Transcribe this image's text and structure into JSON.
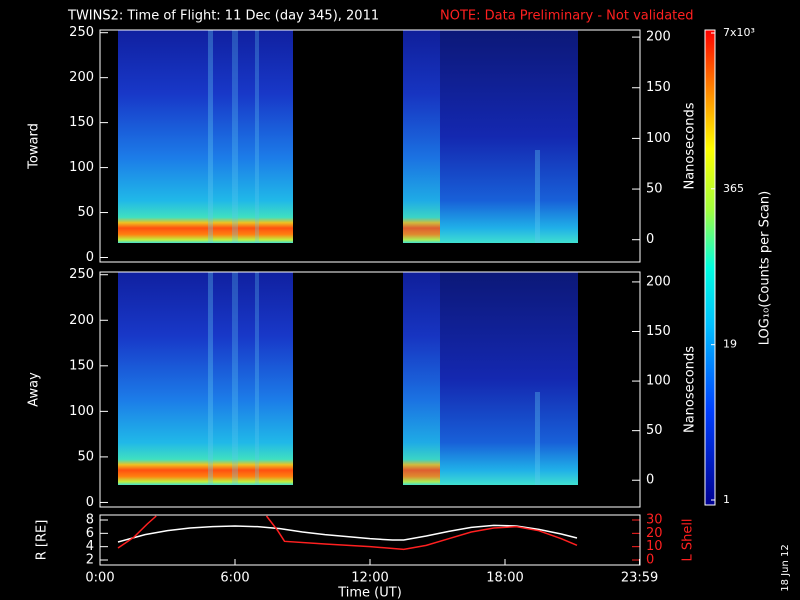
{
  "chart_data": [
    {
      "type": "heatmap",
      "title": "TWINS2: Time of Flight: 11 Dec (day 345), 2011",
      "annotation": "NOTE: Data Preliminary - Not validated",
      "ylabel": "Toward",
      "y2label": "Nanoseconds",
      "xlim": [
        0,
        24
      ],
      "ylim": [
        -5,
        253
      ],
      "yticks": [
        0,
        50,
        100,
        150,
        200,
        250
      ],
      "y2lim": [
        -22,
        207
      ],
      "y2ticks": [
        0,
        50,
        100,
        150,
        200
      ]
    },
    {
      "type": "heatmap",
      "ylabel": "Away",
      "y2label": "Nanoseconds",
      "xlim": [
        0,
        24
      ],
      "ylim": [
        -5,
        253
      ],
      "yticks": [
        0,
        50,
        100,
        150,
        200,
        250
      ],
      "y2lim": [
        -27,
        210
      ],
      "y2ticks": [
        0,
        50,
        100,
        150,
        200
      ]
    },
    {
      "type": "line",
      "xlabel": "Time (UT)",
      "ylabel": "R [RE]",
      "y2label": "L Shell",
      "xlim": [
        0,
        24
      ],
      "xticks": [
        {
          "value": 0,
          "label": "0:00"
        },
        {
          "value": 6,
          "label": "6:00"
        },
        {
          "value": 12,
          "label": "12:00"
        },
        {
          "value": 18,
          "label": "18:00"
        },
        {
          "value": 23.98,
          "label": "23:59"
        }
      ],
      "ylim": [
        1.25,
        8.75
      ],
      "yticks": [
        2,
        4,
        6,
        8
      ],
      "y2lim": [
        -3.75,
        33.75
      ],
      "y2ticks": [
        0,
        10,
        20,
        30
      ],
      "series": [
        {
          "color": "#ffffff",
          "x": [
            0.8,
            2,
            3,
            4,
            5,
            6,
            7,
            8,
            9,
            10,
            11,
            12,
            13,
            13.5,
            14.5,
            15.5,
            16.5,
            17.5,
            18.5,
            19.5,
            20.5,
            21.2
          ],
          "values": [
            4.7,
            5.8,
            6.4,
            6.8,
            7.0,
            7.1,
            7.0,
            6.7,
            6.2,
            5.8,
            5.5,
            5.2,
            5.0,
            5.0,
            5.6,
            6.3,
            6.9,
            7.2,
            7.1,
            6.6,
            5.9,
            5.3
          ]
        },
        {
          "color": "#ff2020",
          "axis": "y2",
          "x": [
            0.8,
            1.5,
            2.1,
            2.5,
            5,
            7.4,
            7.9,
            8.2,
            10,
            12,
            13.5,
            14.5,
            15.5,
            16.5,
            17.5,
            18.5,
            19.5,
            20.5,
            21.2
          ],
          "values": [
            9,
            17,
            27,
            33,
            null,
            33,
            22,
            14,
            12,
            10,
            8,
            11,
            16,
            21,
            24,
            25,
            22,
            16,
            11
          ]
        }
      ]
    },
    {
      "type": "colorbar",
      "label": "LOG₁₀(Counts per Scan)",
      "log": true,
      "clim": [
        1,
        7000
      ],
      "ticks": [
        1,
        19,
        365,
        {
          "value": 7000,
          "label": "7x10³"
        }
      ]
    }
  ],
  "footer": "18 Jun 12"
}
